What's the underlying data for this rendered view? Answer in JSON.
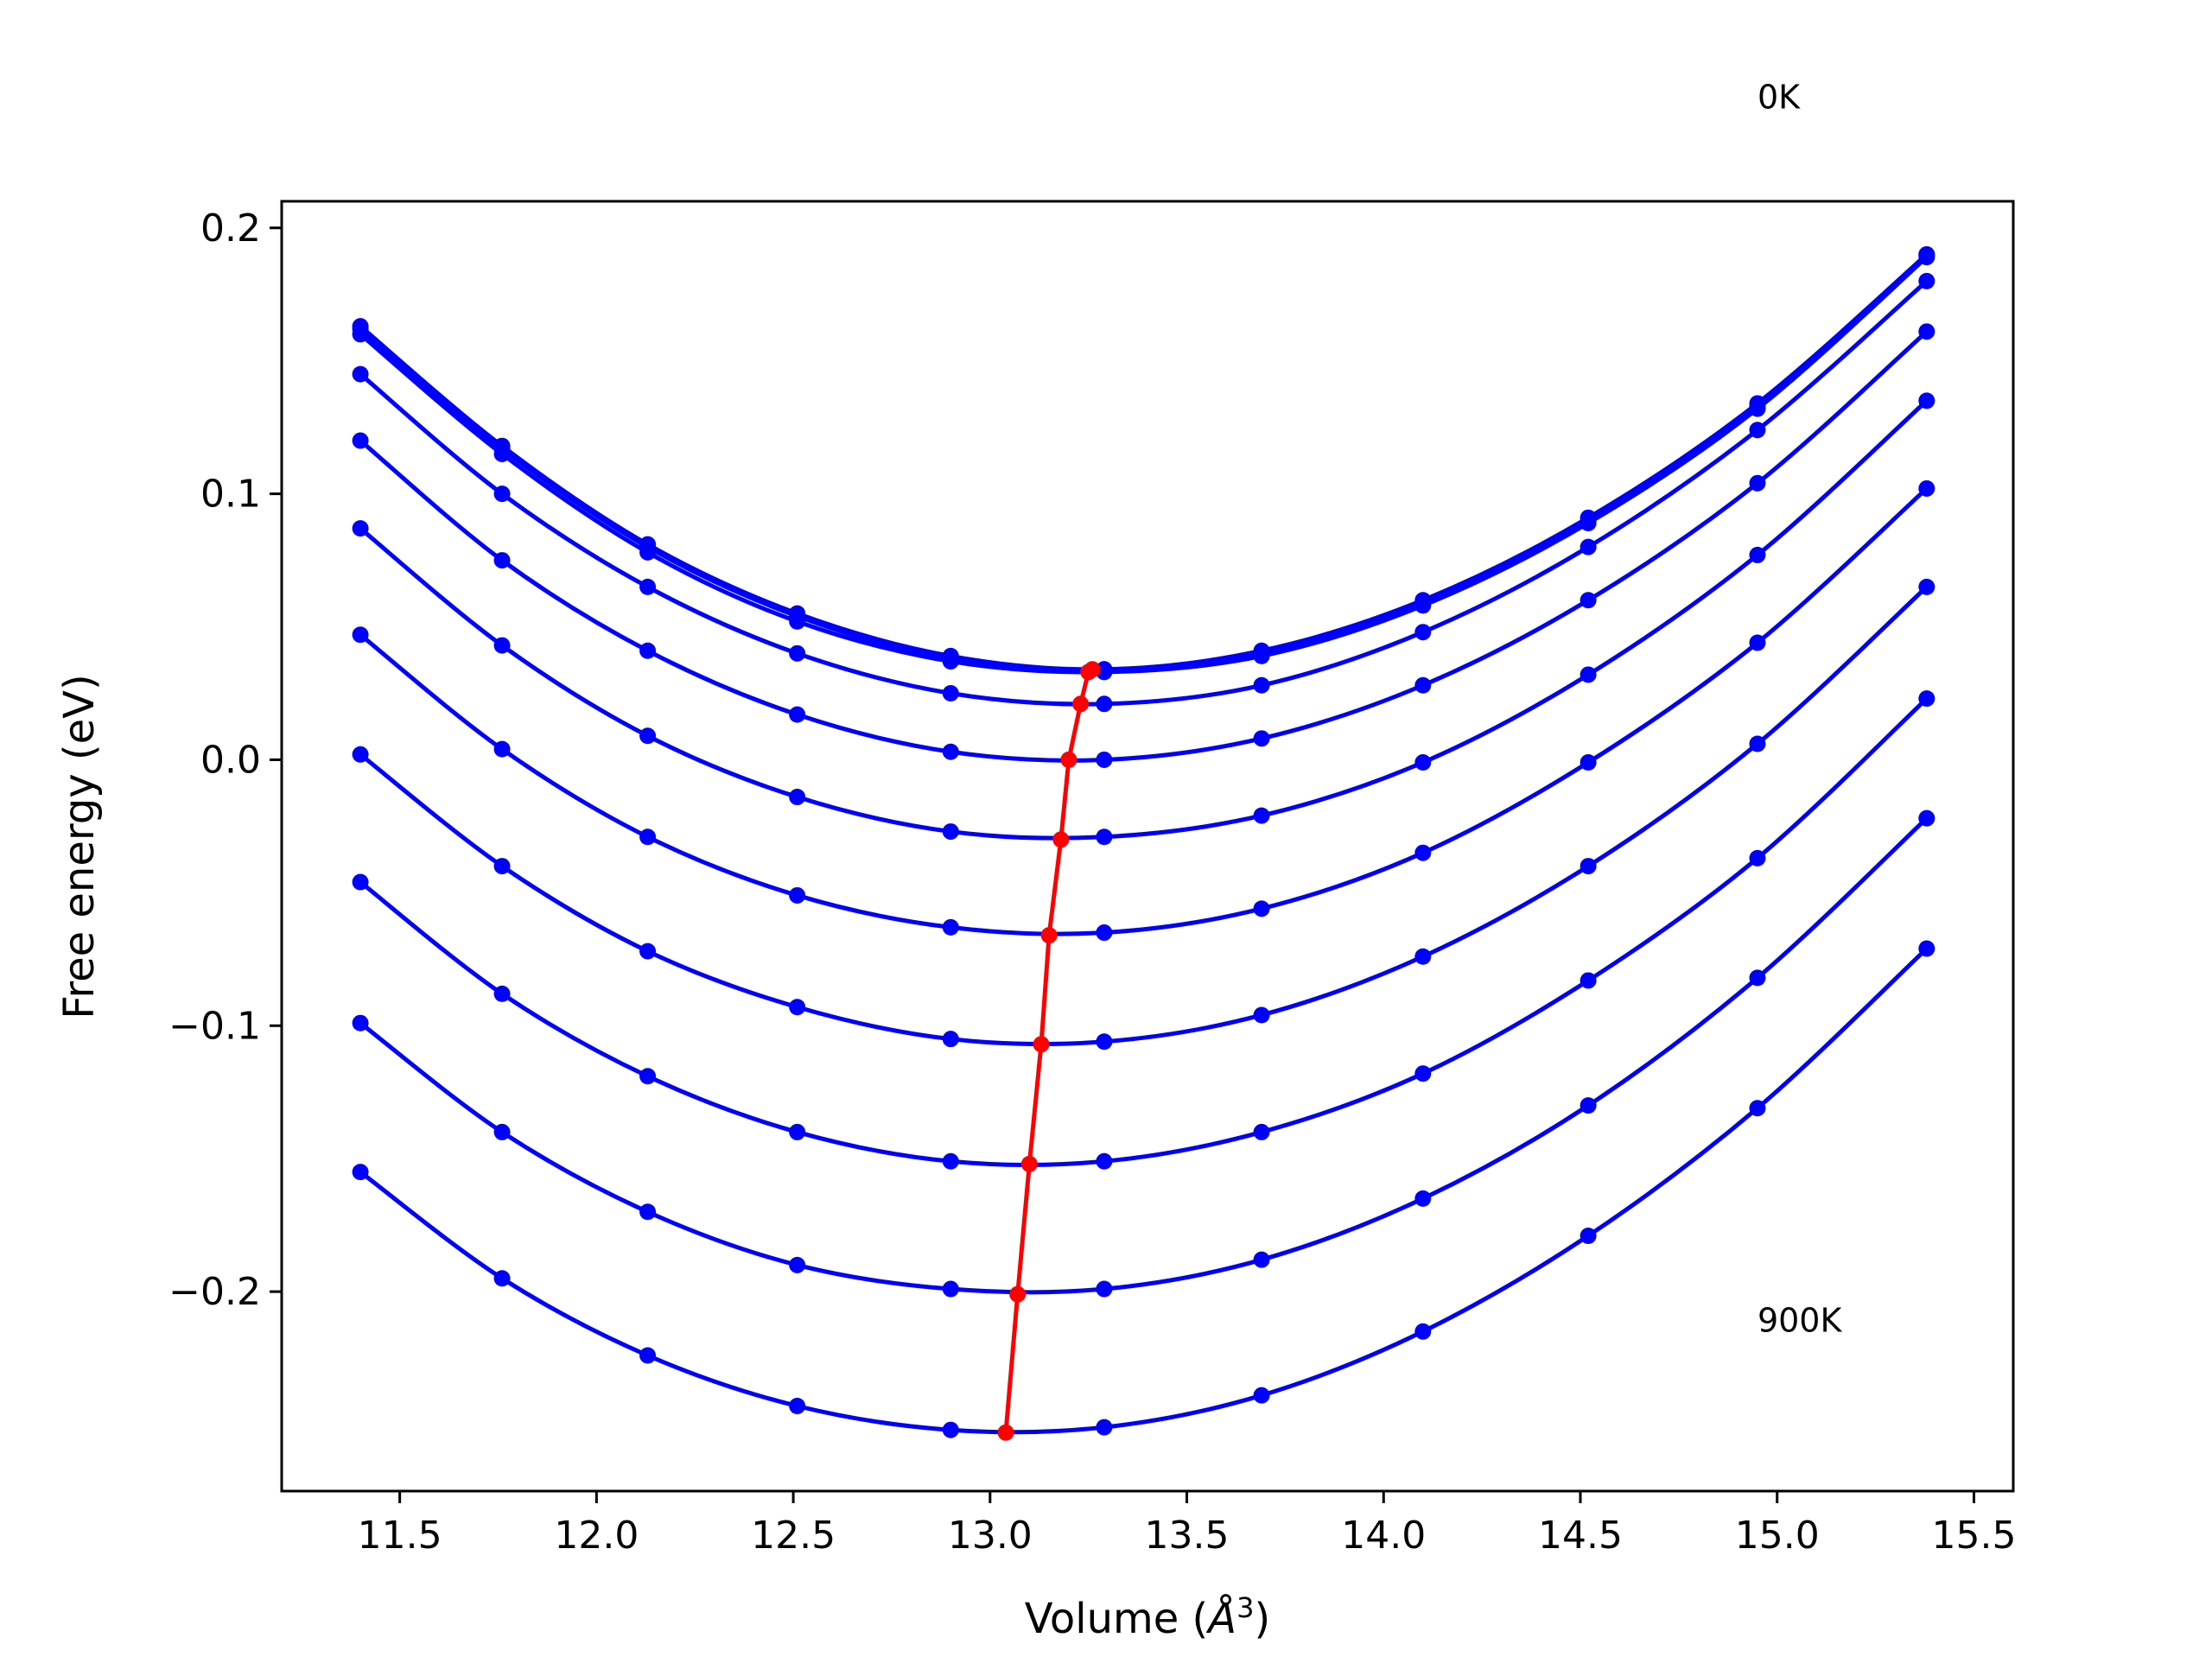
{
  "chart_data": {
    "type": "line",
    "title": "",
    "xlabel": "Volume",
    "xlabel_unit_base": "Å",
    "xlabel_unit_exp": "3",
    "ylabel": "Free energy (eV)",
    "xlim": [
      11.2,
      15.6
    ],
    "ylim": [
      -0.275,
      0.21
    ],
    "x_ticks": [
      11.5,
      12.0,
      12.5,
      13.0,
      13.5,
      14.0,
      14.5,
      15.0,
      15.5
    ],
    "x_tick_labels": [
      "11.5",
      "12.0",
      "12.5",
      "13.0",
      "13.5",
      "14.0",
      "14.5",
      "15.0",
      "15.5"
    ],
    "y_ticks": [
      -0.2,
      -0.1,
      0.0,
      0.1,
      0.2
    ],
    "y_tick_labels": [
      "−0.2",
      "−0.1",
      "0.0",
      "0.1",
      "0.2"
    ],
    "grid": false,
    "legend": "none",
    "annotations": [
      {
        "text": "0K",
        "x": 14.95,
        "y": 0.245
      },
      {
        "text": "900K",
        "x": 14.95,
        "y": -0.215
      }
    ],
    "x": [
      11.4,
      11.76,
      12.13,
      12.51,
      12.9,
      13.29,
      13.69,
      14.1,
      14.52,
      14.95,
      15.38
    ],
    "series": [
      {
        "values": [
          0.163,
          0.118,
          0.081,
          0.055,
          0.039,
          0.034,
          0.041,
          0.06,
          0.091,
          0.134,
          0.19
        ]
      },
      {
        "values": [
          0.162,
          0.117,
          0.08,
          0.054,
          0.038,
          0.034,
          0.04,
          0.059,
          0.09,
          0.133,
          0.19
        ]
      },
      {
        "values": [
          0.16,
          0.115,
          0.078,
          0.052,
          0.037,
          0.033,
          0.039,
          0.058,
          0.089,
          0.132,
          0.189
        ]
      },
      {
        "values": [
          0.145,
          0.1,
          0.065,
          0.04,
          0.025,
          0.021,
          0.028,
          0.048,
          0.08,
          0.124,
          0.18
        ]
      },
      {
        "values": [
          0.12,
          0.075,
          0.041,
          0.017,
          0.003,
          0.0,
          0.008,
          0.028,
          0.06,
          0.104,
          0.161
        ]
      },
      {
        "values": [
          0.087,
          0.043,
          0.009,
          -0.014,
          -0.027,
          -0.029,
          -0.021,
          -0.001,
          0.032,
          0.077,
          0.135
        ]
      },
      {
        "values": [
          0.047,
          0.004,
          -0.029,
          -0.051,
          -0.063,
          -0.065,
          -0.056,
          -0.035,
          -0.001,
          0.044,
          0.102
        ]
      },
      {
        "values": [
          0.002,
          -0.04,
          -0.072,
          -0.093,
          -0.105,
          -0.106,
          -0.096,
          -0.074,
          -0.04,
          0.006,
          0.065
        ]
      },
      {
        "values": [
          -0.046,
          -0.088,
          -0.119,
          -0.14,
          -0.151,
          -0.151,
          -0.14,
          -0.118,
          -0.083,
          -0.037,
          0.023
        ]
      },
      {
        "values": [
          -0.099,
          -0.14,
          -0.17,
          -0.19,
          -0.199,
          -0.199,
          -0.188,
          -0.165,
          -0.13,
          -0.082,
          -0.022
        ]
      },
      {
        "values": [
          -0.155,
          -0.195,
          -0.224,
          -0.243,
          -0.252,
          -0.251,
          -0.239,
          -0.215,
          -0.179,
          -0.131,
          -0.071
        ]
      }
    ],
    "minima": {
      "x": [
        13.26,
        13.25,
        13.23,
        13.2,
        13.18,
        13.15,
        13.13,
        13.1,
        13.07,
        13.04
      ],
      "y": [
        0.034,
        0.033,
        0.021,
        0.0,
        -0.03,
        -0.066,
        -0.107,
        -0.152,
        -0.201,
        -0.253
      ]
    },
    "colors": {
      "curves": "#0000ff",
      "minima": "#ff0000",
      "axes": "#000000"
    }
  }
}
